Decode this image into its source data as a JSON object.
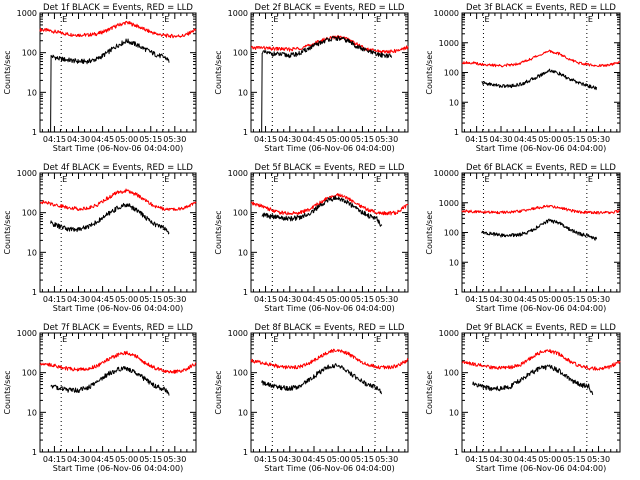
{
  "figure": {
    "background": "#ffffff",
    "colors": {
      "events": "#000000",
      "lld": "#ff0000",
      "axis": "#000000"
    }
  },
  "chart_data": [
    {
      "type": "line",
      "title": "Det 1f BLACK = Events, RED = LLD",
      "xlabel": "Start Time (06-Nov-06 04:04:00)",
      "ylabel": "Counts/sec",
      "yscale": "log",
      "ylim": [
        1,
        1000
      ],
      "yticks": [
        "1",
        "10",
        "100",
        "1000"
      ],
      "xlim": [
        4.1,
        5.72
      ],
      "xticks": [
        "04:15",
        "04:30",
        "04:45",
        "05:00",
        "05:15",
        "05:30"
      ],
      "x_tick_hours": [
        4.25,
        4.5,
        4.75,
        5.0,
        5.25,
        5.5
      ],
      "markers": [
        {
          "x": 4.32,
          "label": "E"
        },
        {
          "x": 5.38,
          "label": "E"
        }
      ],
      "series": [
        {
          "color": "#ff0000",
          "x": [
            4.1,
            4.2,
            4.3,
            4.4,
            4.5,
            4.6,
            4.7,
            4.8,
            4.9,
            5.0,
            5.1,
            5.2,
            5.3,
            5.4,
            5.5,
            5.6,
            5.72
          ],
          "y": [
            380,
            360,
            320,
            290,
            280,
            280,
            300,
            370,
            480,
            580,
            480,
            370,
            300,
            270,
            260,
            270,
            380
          ]
        },
        {
          "color": "#000000",
          "x": [
            4.21,
            4.215,
            4.23,
            4.3,
            4.4,
            4.5,
            4.6,
            4.7,
            4.8,
            4.9,
            5.0,
            5.1,
            5.2,
            5.3,
            5.4,
            5.42,
            5.44
          ],
          "y": [
            1,
            80,
            80,
            70,
            65,
            60,
            60,
            70,
            100,
            150,
            200,
            160,
            120,
            90,
            75,
            70,
            60
          ]
        }
      ]
    },
    {
      "type": "line",
      "title": "Det 2f BLACK = Events, RED = LLD",
      "xlabel": "Start Time (06-Nov-06 04:04:00)",
      "ylabel": "Counts/sec",
      "yscale": "log",
      "ylim": [
        1,
        1000
      ],
      "yticks": [
        "1",
        "10",
        "100",
        "1000"
      ],
      "xlim": [
        4.1,
        5.72
      ],
      "xticks": [
        "04:15",
        "04:30",
        "04:45",
        "05:00",
        "05:15",
        "05:30"
      ],
      "x_tick_hours": [
        4.25,
        4.5,
        4.75,
        5.0,
        5.25,
        5.5
      ],
      "markers": [
        {
          "x": 4.32,
          "label": "E"
        },
        {
          "x": 5.38,
          "label": "E"
        }
      ],
      "series": [
        {
          "color": "#ff0000",
          "x": [
            4.1,
            4.2,
            4.3,
            4.4,
            4.5,
            4.6,
            4.7,
            4.8,
            4.9,
            5.0,
            5.1,
            5.2,
            5.3,
            5.4,
            5.5,
            5.6,
            5.72
          ],
          "y": [
            130,
            135,
            125,
            125,
            120,
            130,
            150,
            190,
            230,
            250,
            220,
            160,
            120,
            110,
            105,
            110,
            140
          ]
        },
        {
          "color": "#000000",
          "x": [
            4.21,
            4.215,
            4.23,
            4.3,
            4.4,
            4.5,
            4.6,
            4.7,
            4.8,
            4.9,
            5.0,
            5.1,
            5.2,
            5.3,
            5.4,
            5.5,
            5.55
          ],
          "y": [
            1,
            110,
            100,
            95,
            90,
            85,
            95,
            130,
            170,
            220,
            230,
            200,
            140,
            110,
            90,
            85,
            80
          ]
        }
      ]
    },
    {
      "type": "line",
      "title": "Det 3f BLACK = Events, RED = LLD",
      "xlabel": "Start Time (06-Nov-06 04:04:00)",
      "ylabel": "Counts/sec",
      "yscale": "log",
      "ylim": [
        1,
        10000
      ],
      "yticks": [
        "1",
        "10",
        "100",
        "1000",
        "10000"
      ],
      "xlim": [
        4.1,
        5.72
      ],
      "xticks": [
        "04:15",
        "04:30",
        "04:45",
        "05:00",
        "05:15",
        "05:30"
      ],
      "x_tick_hours": [
        4.25,
        4.5,
        4.75,
        5.0,
        5.25,
        5.5
      ],
      "markers": [
        {
          "x": 4.32,
          "label": "E"
        },
        {
          "x": 5.38,
          "label": "E"
        }
      ],
      "series": [
        {
          "color": "#ff0000",
          "x": [
            4.1,
            4.2,
            4.3,
            4.4,
            4.5,
            4.6,
            4.7,
            4.8,
            4.9,
            5.0,
            5.1,
            5.2,
            5.3,
            5.4,
            5.5,
            5.6,
            5.72
          ],
          "y": [
            220,
            210,
            190,
            175,
            170,
            180,
            210,
            280,
            400,
            520,
            420,
            280,
            210,
            180,
            170,
            175,
            220
          ]
        },
        {
          "color": "#000000",
          "x": [
            4.3,
            4.4,
            4.5,
            4.6,
            4.7,
            4.8,
            4.9,
            5.0,
            5.1,
            5.2,
            5.3,
            5.4,
            5.48
          ],
          "y": [
            45,
            40,
            35,
            35,
            40,
            55,
            80,
            120,
            90,
            60,
            45,
            35,
            30
          ]
        }
      ]
    },
    {
      "type": "line",
      "title": "Det 4f BLACK = Events, RED = LLD",
      "xlabel": "Start Time (06-Nov-06 04:04:00)",
      "ylabel": "Counts/sec",
      "yscale": "log",
      "ylim": [
        1,
        1000
      ],
      "yticks": [
        "1",
        "10",
        "100",
        "1000"
      ],
      "xlim": [
        4.1,
        5.72
      ],
      "xticks": [
        "04:15",
        "04:30",
        "04:45",
        "05:00",
        "05:15",
        "05:30"
      ],
      "x_tick_hours": [
        4.25,
        4.5,
        4.75,
        5.0,
        5.25,
        5.5
      ],
      "markers": [
        {
          "x": 4.32,
          "label": "E"
        },
        {
          "x": 5.38,
          "label": "E"
        }
      ],
      "series": [
        {
          "color": "#ff0000",
          "x": [
            4.1,
            4.2,
            4.3,
            4.4,
            4.5,
            4.6,
            4.7,
            4.8,
            4.9,
            5.0,
            5.1,
            5.2,
            5.3,
            5.4,
            5.5,
            5.6,
            5.72
          ],
          "y": [
            190,
            170,
            150,
            135,
            125,
            130,
            160,
            230,
            320,
            360,
            290,
            200,
            140,
            125,
            120,
            130,
            180
          ]
        },
        {
          "color": "#000000",
          "x": [
            4.21,
            4.3,
            4.4,
            4.5,
            4.6,
            4.7,
            4.8,
            4.9,
            5.0,
            5.1,
            5.2,
            5.3,
            5.4,
            5.44
          ],
          "y": [
            55,
            45,
            38,
            38,
            45,
            60,
            90,
            130,
            160,
            120,
            75,
            50,
            40,
            30
          ]
        }
      ]
    },
    {
      "type": "line",
      "title": "Det 5f BLACK = Events, RED = LLD",
      "xlabel": "Start Time (06-Nov-06 04:04:00)",
      "ylabel": "Counts/sec",
      "yscale": "log",
      "ylim": [
        1,
        1000
      ],
      "yticks": [
        "1",
        "10",
        "100",
        "1000"
      ],
      "xlim": [
        4.1,
        5.72
      ],
      "xticks": [
        "04:15",
        "04:30",
        "04:45",
        "05:00",
        "05:15",
        "05:30"
      ],
      "x_tick_hours": [
        4.25,
        4.5,
        4.75,
        5.0,
        5.25,
        5.5
      ],
      "markers": [
        {
          "x": 4.32,
          "label": "E"
        },
        {
          "x": 5.38,
          "label": "E"
        }
      ],
      "series": [
        {
          "color": "#ff0000",
          "x": [
            4.1,
            4.2,
            4.3,
            4.4,
            4.5,
            4.6,
            4.7,
            4.8,
            4.9,
            5.0,
            5.1,
            5.2,
            5.3,
            5.4,
            5.5,
            5.6,
            5.72
          ],
          "y": [
            170,
            150,
            120,
            100,
            95,
            100,
            120,
            170,
            240,
            290,
            230,
            160,
            120,
            100,
            95,
            100,
            160
          ]
        },
        {
          "color": "#000000",
          "x": [
            4.21,
            4.3,
            4.4,
            4.5,
            4.6,
            4.7,
            4.8,
            4.9,
            5.0,
            5.1,
            5.2,
            5.3,
            5.4,
            5.45
          ],
          "y": [
            90,
            80,
            75,
            70,
            75,
            95,
            140,
            210,
            240,
            180,
            120,
            85,
            70,
            45
          ]
        }
      ]
    },
    {
      "type": "line",
      "title": "Det 6f BLACK = Events, RED = LLD",
      "xlabel": "Start Time (06-Nov-06 04:04:00)",
      "ylabel": "Counts/sec",
      "yscale": "log",
      "ylim": [
        1,
        10000
      ],
      "yticks": [
        "1",
        "10",
        "100",
        "1000",
        "10000"
      ],
      "xlim": [
        4.1,
        5.72
      ],
      "xticks": [
        "04:15",
        "04:30",
        "04:45",
        "05:00",
        "05:15",
        "05:30"
      ],
      "x_tick_hours": [
        4.25,
        4.5,
        4.75,
        5.0,
        5.25,
        5.5
      ],
      "markers": [
        {
          "x": 4.32,
          "label": "E"
        },
        {
          "x": 5.38,
          "label": "E"
        }
      ],
      "series": [
        {
          "color": "#ff0000",
          "x": [
            4.1,
            4.2,
            4.3,
            4.4,
            4.5,
            4.6,
            4.7,
            4.8,
            4.9,
            5.0,
            5.1,
            5.2,
            5.3,
            5.4,
            5.5,
            5.6,
            5.72
          ],
          "y": [
            520,
            510,
            490,
            480,
            470,
            480,
            520,
            600,
            700,
            780,
            680,
            560,
            490,
            470,
            460,
            470,
            520
          ]
        },
        {
          "color": "#000000",
          "x": [
            4.3,
            4.4,
            4.5,
            4.6,
            4.7,
            4.8,
            4.9,
            5.0,
            5.1,
            5.2,
            5.3,
            5.4,
            5.48
          ],
          "y": [
            100,
            90,
            80,
            80,
            85,
            110,
            170,
            260,
            200,
            130,
            90,
            75,
            60
          ]
        }
      ]
    },
    {
      "type": "line",
      "title": "Det 7f BLACK = Events, RED = LLD",
      "xlabel": "Start Time (06-Nov-06 04:04:00)",
      "ylabel": "Counts/sec",
      "yscale": "log",
      "ylim": [
        1,
        1000
      ],
      "yticks": [
        "1",
        "10",
        "100",
        "1000"
      ],
      "xlim": [
        4.1,
        5.72
      ],
      "xticks": [
        "04:15",
        "04:30",
        "04:45",
        "05:00",
        "05:15",
        "05:30"
      ],
      "x_tick_hours": [
        4.25,
        4.5,
        4.75,
        5.0,
        5.25,
        5.5
      ],
      "markers": [
        {
          "x": 4.32,
          "label": "E"
        },
        {
          "x": 5.38,
          "label": "E"
        }
      ],
      "series": [
        {
          "color": "#ff0000",
          "x": [
            4.1,
            4.2,
            4.3,
            4.4,
            4.5,
            4.6,
            4.7,
            4.8,
            4.9,
            5.0,
            5.1,
            5.2,
            5.3,
            5.4,
            5.5,
            5.6,
            5.72
          ],
          "y": [
            175,
            160,
            140,
            125,
            120,
            125,
            150,
            210,
            280,
            320,
            260,
            170,
            130,
            110,
            105,
            115,
            170
          ]
        },
        {
          "color": "#000000",
          "x": [
            4.21,
            4.3,
            4.4,
            4.5,
            4.6,
            4.7,
            4.8,
            4.9,
            5.0,
            5.1,
            5.2,
            5.3,
            5.4,
            5.44
          ],
          "y": [
            48,
            40,
            36,
            36,
            42,
            60,
            90,
            120,
            130,
            100,
            65,
            45,
            38,
            30
          ]
        }
      ]
    },
    {
      "type": "line",
      "title": "Det 8f BLACK = Events, RED = LLD",
      "xlabel": "Start Time (06-Nov-06 04:04:00)",
      "ylabel": "Counts/sec",
      "yscale": "log",
      "ylim": [
        1,
        1000
      ],
      "yticks": [
        "1",
        "10",
        "100",
        "1000"
      ],
      "xlim": [
        4.1,
        5.72
      ],
      "xticks": [
        "04:15",
        "04:30",
        "04:45",
        "05:00",
        "05:15",
        "05:30"
      ],
      "x_tick_hours": [
        4.25,
        4.5,
        4.75,
        5.0,
        5.25,
        5.5
      ],
      "markers": [
        {
          "x": 4.32,
          "label": "E"
        },
        {
          "x": 5.38,
          "label": "E"
        }
      ],
      "series": [
        {
          "color": "#ff0000",
          "x": [
            4.1,
            4.2,
            4.3,
            4.4,
            4.5,
            4.6,
            4.7,
            4.8,
            4.9,
            5.0,
            5.1,
            5.2,
            5.3,
            5.4,
            5.5,
            5.6,
            5.72
          ],
          "y": [
            200,
            180,
            160,
            140,
            135,
            140,
            170,
            240,
            330,
            380,
            300,
            210,
            160,
            140,
            135,
            145,
            210
          ]
        },
        {
          "color": "#000000",
          "x": [
            4.21,
            4.3,
            4.4,
            4.5,
            4.6,
            4.7,
            4.8,
            4.9,
            5.0,
            5.1,
            5.2,
            5.3,
            5.4,
            5.45
          ],
          "y": [
            55,
            48,
            42,
            40,
            45,
            65,
            100,
            140,
            150,
            110,
            70,
            50,
            42,
            30
          ]
        }
      ]
    },
    {
      "type": "line",
      "title": "Det 9f BLACK = Events, RED = LLD",
      "xlabel": "Start Time (06-Nov-06 04:04:00)",
      "ylabel": "Counts/sec",
      "yscale": "log",
      "ylim": [
        1,
        1000
      ],
      "yticks": [
        "1",
        "10",
        "100",
        "1000"
      ],
      "xlim": [
        4.1,
        5.72
      ],
      "xticks": [
        "04:15",
        "04:30",
        "04:45",
        "05:00",
        "05:15",
        "05:30"
      ],
      "x_tick_hours": [
        4.25,
        4.5,
        4.75,
        5.0,
        5.25,
        5.5
      ],
      "markers": [
        {
          "x": 4.32,
          "label": "E"
        },
        {
          "x": 5.38,
          "label": "E"
        }
      ],
      "series": [
        {
          "color": "#ff0000",
          "x": [
            4.1,
            4.2,
            4.3,
            4.4,
            4.5,
            4.6,
            4.7,
            4.8,
            4.9,
            5.0,
            5.1,
            5.2,
            5.3,
            5.4,
            5.5,
            5.6,
            5.72
          ],
          "y": [
            190,
            170,
            150,
            135,
            130,
            135,
            160,
            230,
            320,
            360,
            290,
            200,
            150,
            130,
            125,
            135,
            190
          ]
        },
        {
          "color": "#000000",
          "x": [
            4.21,
            4.3,
            4.4,
            4.5,
            4.6,
            4.7,
            4.8,
            4.9,
            5.0,
            5.1,
            5.2,
            5.3,
            5.4,
            5.44
          ],
          "y": [
            55,
            45,
            40,
            40,
            45,
            65,
            95,
            130,
            140,
            110,
            70,
            50,
            45,
            30
          ]
        }
      ]
    }
  ]
}
